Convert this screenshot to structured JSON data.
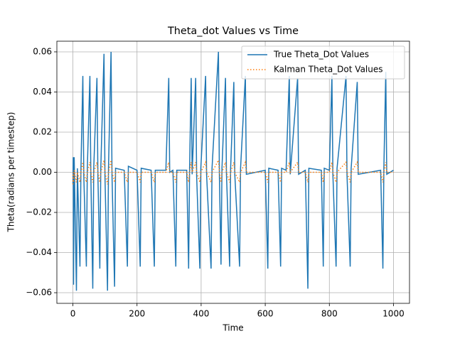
{
  "chart_data": {
    "type": "line",
    "title": "Theta_dot Values vs Time",
    "x_label": "Time",
    "y_label": "Theta(radians per timestep)",
    "x": [
      0,
      1,
      2,
      4,
      11,
      14,
      22,
      25,
      31,
      34,
      42,
      45,
      53,
      56,
      62,
      65,
      75,
      78,
      84,
      87,
      97,
      100,
      108,
      111,
      119,
      122,
      130,
      133,
      160,
      170,
      173,
      200,
      210,
      213,
      244,
      254,
      257,
      290,
      299,
      302,
      312,
      321,
      324,
      355,
      361,
      364,
      369,
      372,
      383,
      386,
      396,
      399,
      414,
      417,
      431,
      434,
      454,
      457,
      462,
      465,
      476,
      479,
      489,
      492,
      502,
      505,
      520,
      523,
      538,
      541,
      600,
      608,
      611,
      640,
      648,
      651,
      665,
      675,
      678,
      701,
      704,
      725,
      733,
      736,
      775,
      781,
      784,
      800,
      808,
      811,
      821,
      824,
      852,
      855,
      865,
      868,
      887,
      890,
      960,
      967,
      970,
      976,
      979,
      1000
    ],
    "series": [
      {
        "name": "True Theta_Dot Values",
        "color": "#1f77b4",
        "style": "solid",
        "values": [
          -0.006,
          0.0075,
          -0.056,
          0.0075,
          -0.059,
          0.002,
          -0.047,
          0.001,
          0.048,
          -0.002,
          -0.047,
          0.002,
          0.048,
          -0.002,
          -0.058,
          0.002,
          0.047,
          -0.002,
          -0.048,
          0.002,
          0.059,
          -0.002,
          -0.059,
          0.002,
          0.06,
          -0.002,
          -0.057,
          0.002,
          0.001,
          -0.047,
          0.003,
          0.001,
          -0.047,
          0.002,
          0.001,
          -0.047,
          0.001,
          0.001,
          0.047,
          0,
          0.001,
          -0.047,
          0.001,
          0.001,
          -0.048,
          0.002,
          0.047,
          -0.001,
          0.047,
          -0.002,
          -0.048,
          0.002,
          0.048,
          -0.001,
          -0.048,
          0.002,
          0.06,
          -0.002,
          -0.046,
          0.002,
          0.047,
          -0.001,
          -0.047,
          0.002,
          0.045,
          -0.001,
          -0.047,
          0.002,
          0.048,
          -0.001,
          0.001,
          -0.048,
          0.002,
          0.001,
          -0.047,
          0.002,
          0.001,
          0.048,
          -0.001,
          0.047,
          -0.001,
          0.001,
          -0.058,
          0.002,
          0.001,
          -0.047,
          0.002,
          0.001,
          0.048,
          -0.001,
          -0.047,
          0.002,
          0.048,
          -0.001,
          -0.047,
          0.002,
          0.045,
          -0.001,
          0.001,
          -0.048,
          0.002,
          0.05,
          -0.001,
          0.001
        ]
      },
      {
        "name": "Kalman Theta_Dot Values",
        "color": "#ff7f0e",
        "style": "dotted",
        "values": [
          -0.006,
          0,
          -0.005,
          0.001,
          -0.005,
          0,
          -0.005,
          0,
          0.005,
          0,
          -0.005,
          0,
          0.005,
          0,
          -0.005,
          0,
          0.005,
          0,
          -0.005,
          0,
          0.006,
          0,
          -0.006,
          0,
          0.006,
          0,
          -0.005,
          0,
          0,
          -0.005,
          0,
          0,
          -0.005,
          0,
          0,
          -0.005,
          0,
          0,
          0.005,
          0,
          0,
          -0.005,
          0,
          0,
          -0.005,
          0,
          0.005,
          0,
          0.005,
          0,
          -0.005,
          0,
          0.005,
          0,
          -0.005,
          0,
          0.006,
          0,
          -0.005,
          0,
          0.005,
          0,
          -0.005,
          0,
          0.005,
          0,
          -0.005,
          0,
          0.005,
          0,
          0,
          -0.005,
          0,
          0,
          -0.005,
          0,
          0,
          0.005,
          0,
          0.005,
          0,
          0,
          -0.005,
          0,
          0,
          -0.005,
          0,
          0,
          0.005,
          0,
          -0.005,
          0,
          0.005,
          0,
          -0.005,
          0,
          0.005,
          0,
          0,
          -0.005,
          0,
          0.005,
          0,
          0
        ]
      }
    ],
    "xlim": [
      -50,
      1050
    ],
    "ylim": [
      -0.0653,
      0.0653
    ],
    "xticks": [
      0,
      200,
      400,
      600,
      800,
      1000
    ],
    "yticks": [
      {
        "value": -0.06,
        "label": "−0.06"
      },
      {
        "value": -0.04,
        "label": "−0.04"
      },
      {
        "value": -0.02,
        "label": "−0.02"
      },
      {
        "value": 0,
        "label": "0.00"
      },
      0.02,
      0.04,
      0.06
    ],
    "grid": true,
    "legend": "upper right"
  }
}
